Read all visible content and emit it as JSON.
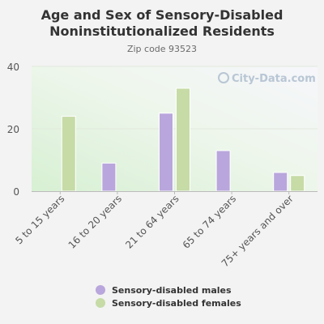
{
  "title_line1": "Age and Sex of Sensory-Disabled",
  "title_line2": "Noninstitutionalized Residents",
  "subtitle": "Zip code 93523",
  "watermark": "City-Data.com",
  "colors": {
    "males": "#b9a6dc",
    "females": "#c6dba6",
    "grid": "#e2e8dc",
    "axis": "#bbbbbb",
    "tick_text": "#555555"
  },
  "chart_data": {
    "type": "bar",
    "title": "Age and Sex of Sensory-Disabled Noninstitutionalized Residents",
    "subtitle": "Zip code 93523",
    "categories": [
      "5 to 15 years",
      "16 to 20 years",
      "21 to 64 years",
      "65 to 74 years",
      "75+ years and over"
    ],
    "series": [
      {
        "name": "Sensory-disabled males",
        "values": [
          0,
          9,
          25,
          13,
          6
        ]
      },
      {
        "name": "Sensory-disabled females",
        "values": [
          24,
          0,
          33,
          0,
          5
        ]
      }
    ],
    "ylim": [
      0,
      40
    ],
    "yticks": [
      0,
      20,
      40
    ],
    "grid": true,
    "legend_position": "bottom"
  }
}
